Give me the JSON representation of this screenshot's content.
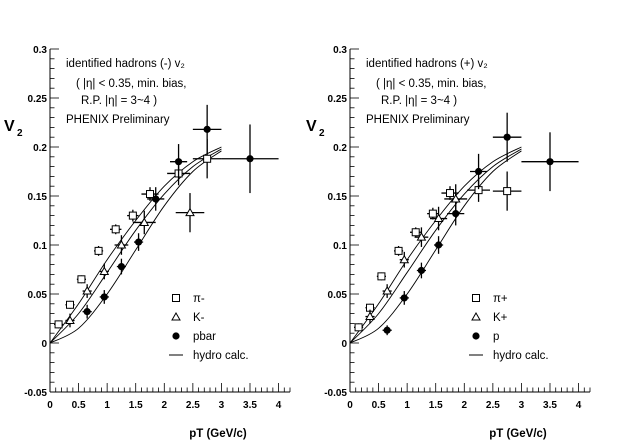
{
  "chart_data": [
    {
      "type": "scatter",
      "panel": "left",
      "title_lines": [
        "identified hadrons (-) v₂",
        "( |η| < 0.35,  min. bias,",
        "R.P. |η| = 3~4 )",
        "PHENIX Preliminary"
      ],
      "xlabel": "pT (GeV/c)",
      "ylabel": "V",
      "ylabel_sub": "2",
      "xlim": [
        0,
        4.2
      ],
      "ylim": [
        -0.05,
        0.3
      ],
      "xticks": [
        0,
        0.5,
        1,
        1.5,
        2,
        2.5,
        3,
        3.5,
        4
      ],
      "xtick_labels": [
        "0",
        "0.5",
        "1",
        "1.5",
        "2",
        "2.5",
        "3",
        "3.5",
        "4"
      ],
      "yticks": [
        -0.05,
        0,
        0.05,
        0.1,
        0.15,
        0.2,
        0.25,
        0.3
      ],
      "ytick_labels": [
        "-0.05",
        "0",
        "0.05",
        "0.1",
        "0.15",
        "0.2",
        "0.25",
        "0.3"
      ],
      "legend_position": "lower-right",
      "series": [
        {
          "name": "π-",
          "marker": "open-square",
          "points": [
            {
              "x": 0.15,
              "y": 0.019,
              "xe": 0.08,
              "ye": 0.004
            },
            {
              "x": 0.35,
              "y": 0.039,
              "xe": 0.08,
              "ye": 0.004
            },
            {
              "x": 0.55,
              "y": 0.065,
              "xe": 0.08,
              "ye": 0.004
            },
            {
              "x": 0.85,
              "y": 0.094,
              "xe": 0.08,
              "ye": 0.005
            },
            {
              "x": 1.15,
              "y": 0.116,
              "xe": 0.1,
              "ye": 0.005
            },
            {
              "x": 1.45,
              "y": 0.13,
              "xe": 0.1,
              "ye": 0.006
            },
            {
              "x": 1.75,
              "y": 0.152,
              "xe": 0.15,
              "ye": 0.007
            },
            {
              "x": 2.25,
              "y": 0.173,
              "xe": 0.2,
              "ye": 0.012
            },
            {
              "x": 2.75,
              "y": 0.188,
              "xe": 0.25,
              "ye": 0.02
            }
          ]
        },
        {
          "name": "K-",
          "marker": "open-triangle",
          "points": [
            {
              "x": 0.35,
              "y": 0.023,
              "xe": 0.08,
              "ye": 0.007
            },
            {
              "x": 0.65,
              "y": 0.053,
              "xe": 0.08,
              "ye": 0.007
            },
            {
              "x": 0.95,
              "y": 0.073,
              "xe": 0.08,
              "ye": 0.008
            },
            {
              "x": 1.25,
              "y": 0.1,
              "xe": 0.12,
              "ye": 0.01
            },
            {
              "x": 1.65,
              "y": 0.123,
              "xe": 0.2,
              "ye": 0.012
            },
            {
              "x": 2.45,
              "y": 0.133,
              "xe": 0.25,
              "ye": 0.02
            }
          ]
        },
        {
          "name": "pbar",
          "marker": "filled-circle",
          "points": [
            {
              "x": 0.65,
              "y": 0.032,
              "xe": 0.08,
              "ye": 0.007
            },
            {
              "x": 0.95,
              "y": 0.047,
              "xe": 0.08,
              "ye": 0.007
            },
            {
              "x": 1.25,
              "y": 0.078,
              "xe": 0.08,
              "ye": 0.008
            },
            {
              "x": 1.55,
              "y": 0.103,
              "xe": 0.08,
              "ye": 0.009
            },
            {
              "x": 1.85,
              "y": 0.147,
              "xe": 0.15,
              "ye": 0.012
            },
            {
              "x": 2.25,
              "y": 0.185,
              "xe": 0.15,
              "ye": 0.018
            },
            {
              "x": 2.75,
              "y": 0.218,
              "xe": 0.25,
              "ye": 0.025
            },
            {
              "x": 3.5,
              "y": 0.188,
              "xe": 0.5,
              "ye": 0.035
            }
          ]
        },
        {
          "name": "hydro calc.",
          "marker": "line",
          "curves": [
            {
              "x": [
                0,
                0.5,
                1,
                1.5,
                2,
                2.5,
                3
              ],
              "y": [
                0,
                0.04,
                0.085,
                0.125,
                0.16,
                0.185,
                0.2
              ]
            },
            {
              "x": [
                0,
                0.5,
                1,
                1.5,
                2,
                2.5,
                3
              ],
              "y": [
                0,
                0.03,
                0.072,
                0.115,
                0.152,
                0.18,
                0.198
              ]
            },
            {
              "x": [
                0,
                0.5,
                1,
                1.5,
                2,
                2.5,
                3
              ],
              "y": [
                0,
                0.015,
                0.05,
                0.095,
                0.14,
                0.175,
                0.196
              ]
            }
          ]
        }
      ]
    },
    {
      "type": "scatter",
      "panel": "right",
      "title_lines": [
        "identified hadrons (+) v₂",
        "( |η| < 0.35,  min. bias,",
        "R.P. |η| = 3~4 )",
        "PHENIX Preliminary"
      ],
      "xlabel": "pT (GeV/c)",
      "ylabel": "V",
      "ylabel_sub": "2",
      "xlim": [
        0,
        4.2
      ],
      "ylim": [
        -0.05,
        0.3
      ],
      "xticks": [
        0,
        0.5,
        1,
        1.5,
        2,
        2.5,
        3,
        3.5,
        4
      ],
      "xtick_labels": [
        "0",
        "0.5",
        "1",
        "1.5",
        "2",
        "2.5",
        "3",
        "3.5",
        "4"
      ],
      "yticks": [
        -0.05,
        0,
        0.05,
        0.1,
        0.15,
        0.2,
        0.25,
        0.3
      ],
      "ytick_labels": [
        "-0.05",
        "0",
        "0.05",
        "0.1",
        "0.15",
        "0.2",
        "0.25",
        "0.3"
      ],
      "legend_position": "lower-right",
      "series": [
        {
          "name": "π+",
          "marker": "open-square",
          "points": [
            {
              "x": 0.15,
              "y": 0.016,
              "xe": 0.08,
              "ye": 0.004
            },
            {
              "x": 0.35,
              "y": 0.036,
              "xe": 0.08,
              "ye": 0.004
            },
            {
              "x": 0.55,
              "y": 0.068,
              "xe": 0.08,
              "ye": 0.004
            },
            {
              "x": 0.85,
              "y": 0.094,
              "xe": 0.08,
              "ye": 0.005
            },
            {
              "x": 1.15,
              "y": 0.113,
              "xe": 0.1,
              "ye": 0.005
            },
            {
              "x": 1.45,
              "y": 0.132,
              "xe": 0.1,
              "ye": 0.006
            },
            {
              "x": 1.75,
              "y": 0.153,
              "xe": 0.15,
              "ye": 0.007
            },
            {
              "x": 2.25,
              "y": 0.156,
              "xe": 0.2,
              "ye": 0.012
            },
            {
              "x": 2.75,
              "y": 0.155,
              "xe": 0.25,
              "ye": 0.02
            }
          ]
        },
        {
          "name": "K+",
          "marker": "open-triangle",
          "points": [
            {
              "x": 0.35,
              "y": 0.027,
              "xe": 0.08,
              "ye": 0.007
            },
            {
              "x": 0.65,
              "y": 0.053,
              "xe": 0.08,
              "ye": 0.007
            },
            {
              "x": 0.95,
              "y": 0.085,
              "xe": 0.08,
              "ye": 0.008
            },
            {
              "x": 1.25,
              "y": 0.108,
              "xe": 0.12,
              "ye": 0.01
            },
            {
              "x": 1.55,
              "y": 0.127,
              "xe": 0.15,
              "ye": 0.012
            },
            {
              "x": 1.85,
              "y": 0.147,
              "xe": 0.2,
              "ye": 0.015
            }
          ]
        },
        {
          "name": "p",
          "marker": "filled-circle",
          "points": [
            {
              "x": 0.65,
              "y": 0.013,
              "xe": 0.08,
              "ye": 0.005
            },
            {
              "x": 0.95,
              "y": 0.046,
              "xe": 0.08,
              "ye": 0.007
            },
            {
              "x": 1.25,
              "y": 0.074,
              "xe": 0.08,
              "ye": 0.008
            },
            {
              "x": 1.55,
              "y": 0.1,
              "xe": 0.08,
              "ye": 0.009
            },
            {
              "x": 1.85,
              "y": 0.132,
              "xe": 0.15,
              "ye": 0.012
            },
            {
              "x": 2.25,
              "y": 0.175,
              "xe": 0.15,
              "ye": 0.018
            },
            {
              "x": 2.75,
              "y": 0.21,
              "xe": 0.25,
              "ye": 0.025
            },
            {
              "x": 3.5,
              "y": 0.185,
              "xe": 0.5,
              "ye": 0.03
            }
          ]
        },
        {
          "name": "hydro calc.",
          "marker": "line",
          "curves": [
            {
              "x": [
                0,
                0.5,
                1,
                1.5,
                2,
                2.5,
                3
              ],
              "y": [
                0,
                0.04,
                0.085,
                0.125,
                0.16,
                0.185,
                0.2
              ]
            },
            {
              "x": [
                0,
                0.5,
                1,
                1.5,
                2,
                2.5,
                3
              ],
              "y": [
                0,
                0.03,
                0.072,
                0.115,
                0.152,
                0.18,
                0.198
              ]
            },
            {
              "x": [
                0,
                0.5,
                1,
                1.5,
                2,
                2.5,
                3
              ],
              "y": [
                0,
                0.015,
                0.05,
                0.095,
                0.14,
                0.175,
                0.196
              ]
            }
          ]
        }
      ]
    }
  ]
}
